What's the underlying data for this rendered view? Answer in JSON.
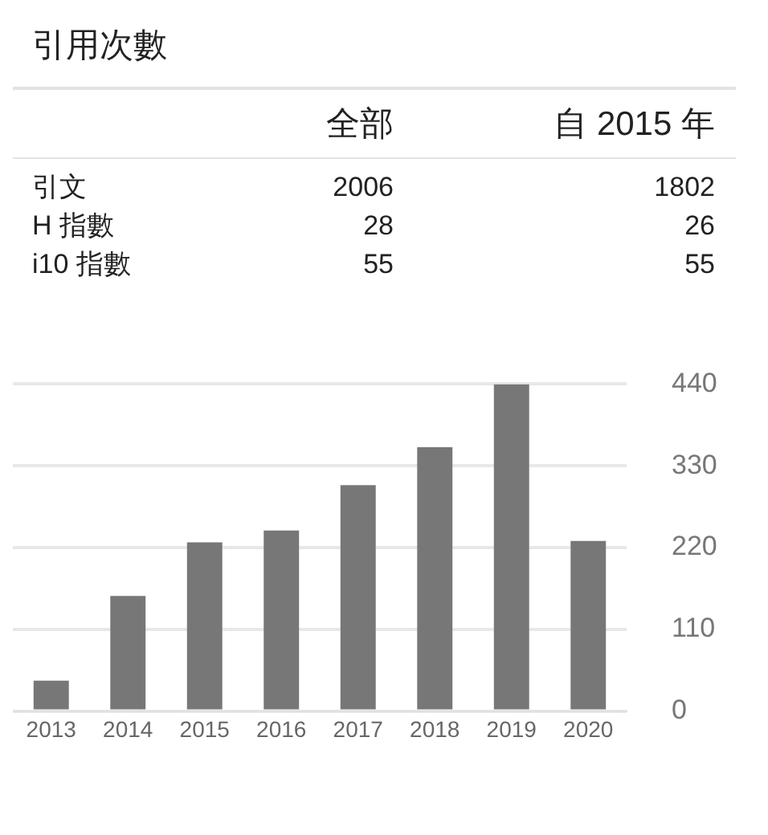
{
  "chart_data": [
    {
      "type": "other",
      "title": "引用次數",
      "annotations": [
        "全部",
        "自 2015 年",
        "引文",
        "2006",
        "1802",
        "H 指數",
        "28",
        "26",
        "i10 指數",
        "55",
        "55"
      ]
    },
    {
      "type": "bar",
      "categories": [
        "2013",
        "2014",
        "2015",
        "2016",
        "2017",
        "2018",
        "2019",
        "2020"
      ],
      "values": [
        41,
        155,
        227,
        243,
        304,
        355,
        440,
        229
      ],
      "color": "#777777",
      "ylim": [
        0,
        440
      ],
      "yticks": [
        0,
        110,
        220,
        330,
        440
      ],
      "grid": "y",
      "legend": false
    }
  ]
}
